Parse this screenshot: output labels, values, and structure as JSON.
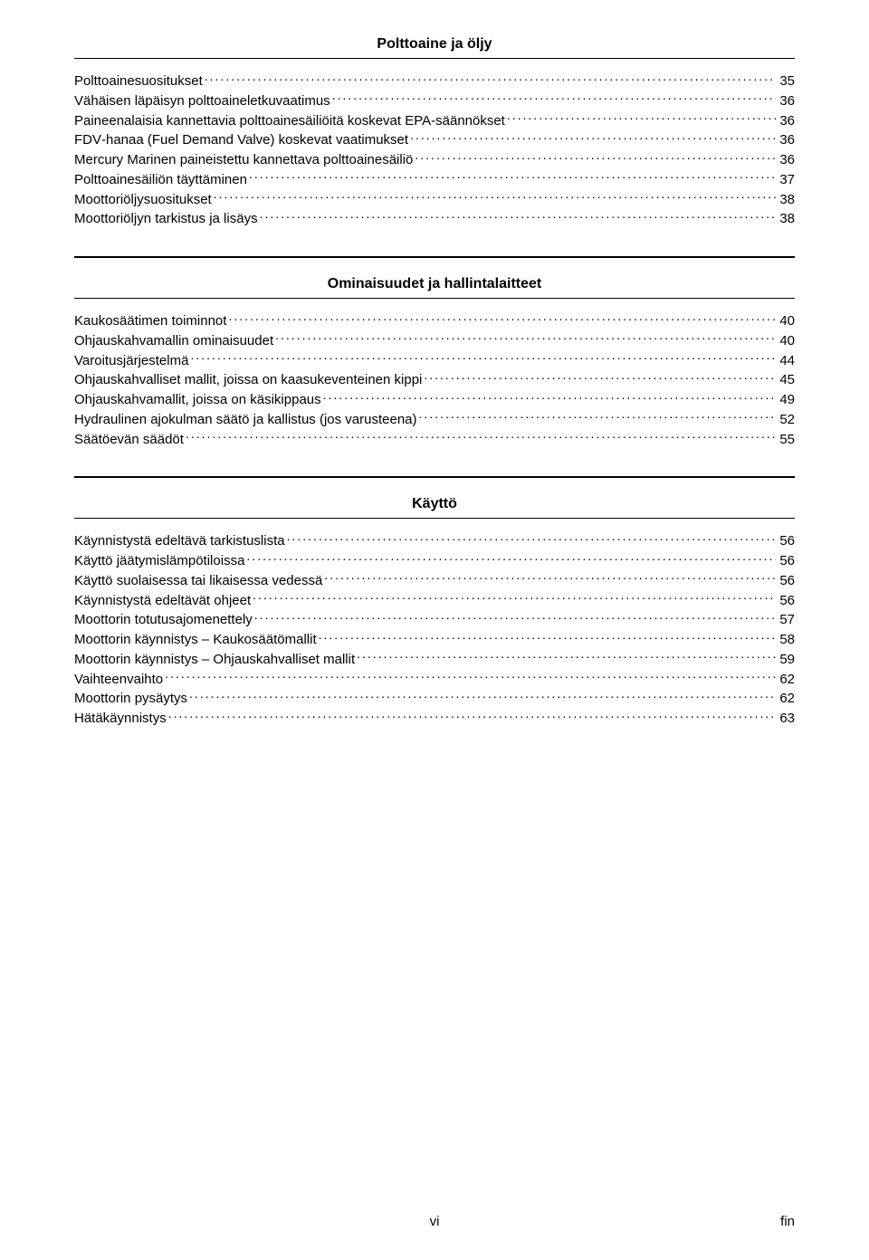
{
  "sections": [
    {
      "title": "Polttoaine ja öljy",
      "entries": [
        {
          "label": "Polttoainesuositukset",
          "page": "35"
        },
        {
          "label": "Vähäisen läpäisyn polttoaineletkuvaatimus",
          "page": "36"
        },
        {
          "label": "Paineenalaisia kannettavia polttoainesäiliöitä koskevat EPA‑säännökset",
          "page": "36"
        },
        {
          "label": "FDV‑hanaa (Fuel Demand Valve) koskevat vaatimukset",
          "page": "36"
        },
        {
          "label": "Mercury Marinen paineistettu kannettava polttoainesäiliö",
          "page": "36"
        },
        {
          "label": "Polttoainesäiliön täyttäminen",
          "page": "37"
        },
        {
          "label": "Moottoriöljysuositukset",
          "page": "38"
        },
        {
          "label": "Moottoriöljyn tarkistus ja lisäys",
          "page": "38"
        }
      ]
    },
    {
      "title": "Ominaisuudet ja hallintalaitteet",
      "entries": [
        {
          "label": "Kaukosäätimen toiminnot",
          "page": "40"
        },
        {
          "label": "Ohjauskahvamallin ominaisuudet",
          "page": "40"
        },
        {
          "label": "Varoitusjärjestelmä",
          "page": "44"
        },
        {
          "label": "Ohjauskahvalliset mallit, joissa on kaasukeventeinen kippi",
          "page": "45"
        },
        {
          "label": "Ohjauskahvamallit, joissa on käsikippaus",
          "page": "49"
        },
        {
          "label": "Hydraulinen ajokulman säätö ja kallistus (jos varusteena)",
          "page": "52"
        },
        {
          "label": "Säätöevän säädöt",
          "page": "55"
        }
      ]
    },
    {
      "title": "Käyttö",
      "entries": [
        {
          "label": "Käynnistystä edeltävä tarkistuslista",
          "page": "56"
        },
        {
          "label": "Käyttö jäätymislämpötiloissa",
          "page": "56"
        },
        {
          "label": "Käyttö suolaisessa tai likaisessa vedessä",
          "page": "56"
        },
        {
          "label": "Käynnistystä edeltävät ohjeet",
          "page": "56"
        },
        {
          "label": "Moottorin totutusajomenettely",
          "page": "57"
        },
        {
          "label": "Moottorin käynnistys – Kaukosäätömallit",
          "page": "58"
        },
        {
          "label": "Moottorin käynnistys – Ohjauskahvalliset mallit",
          "page": "59"
        },
        {
          "label": "Vaihteenvaihto",
          "page": "62"
        },
        {
          "label": "Moottorin pysäytys",
          "page": "62"
        },
        {
          "label": "Hätäkäynnistys",
          "page": "63"
        }
      ]
    }
  ],
  "footer": {
    "center": "vi",
    "right": "fin"
  }
}
